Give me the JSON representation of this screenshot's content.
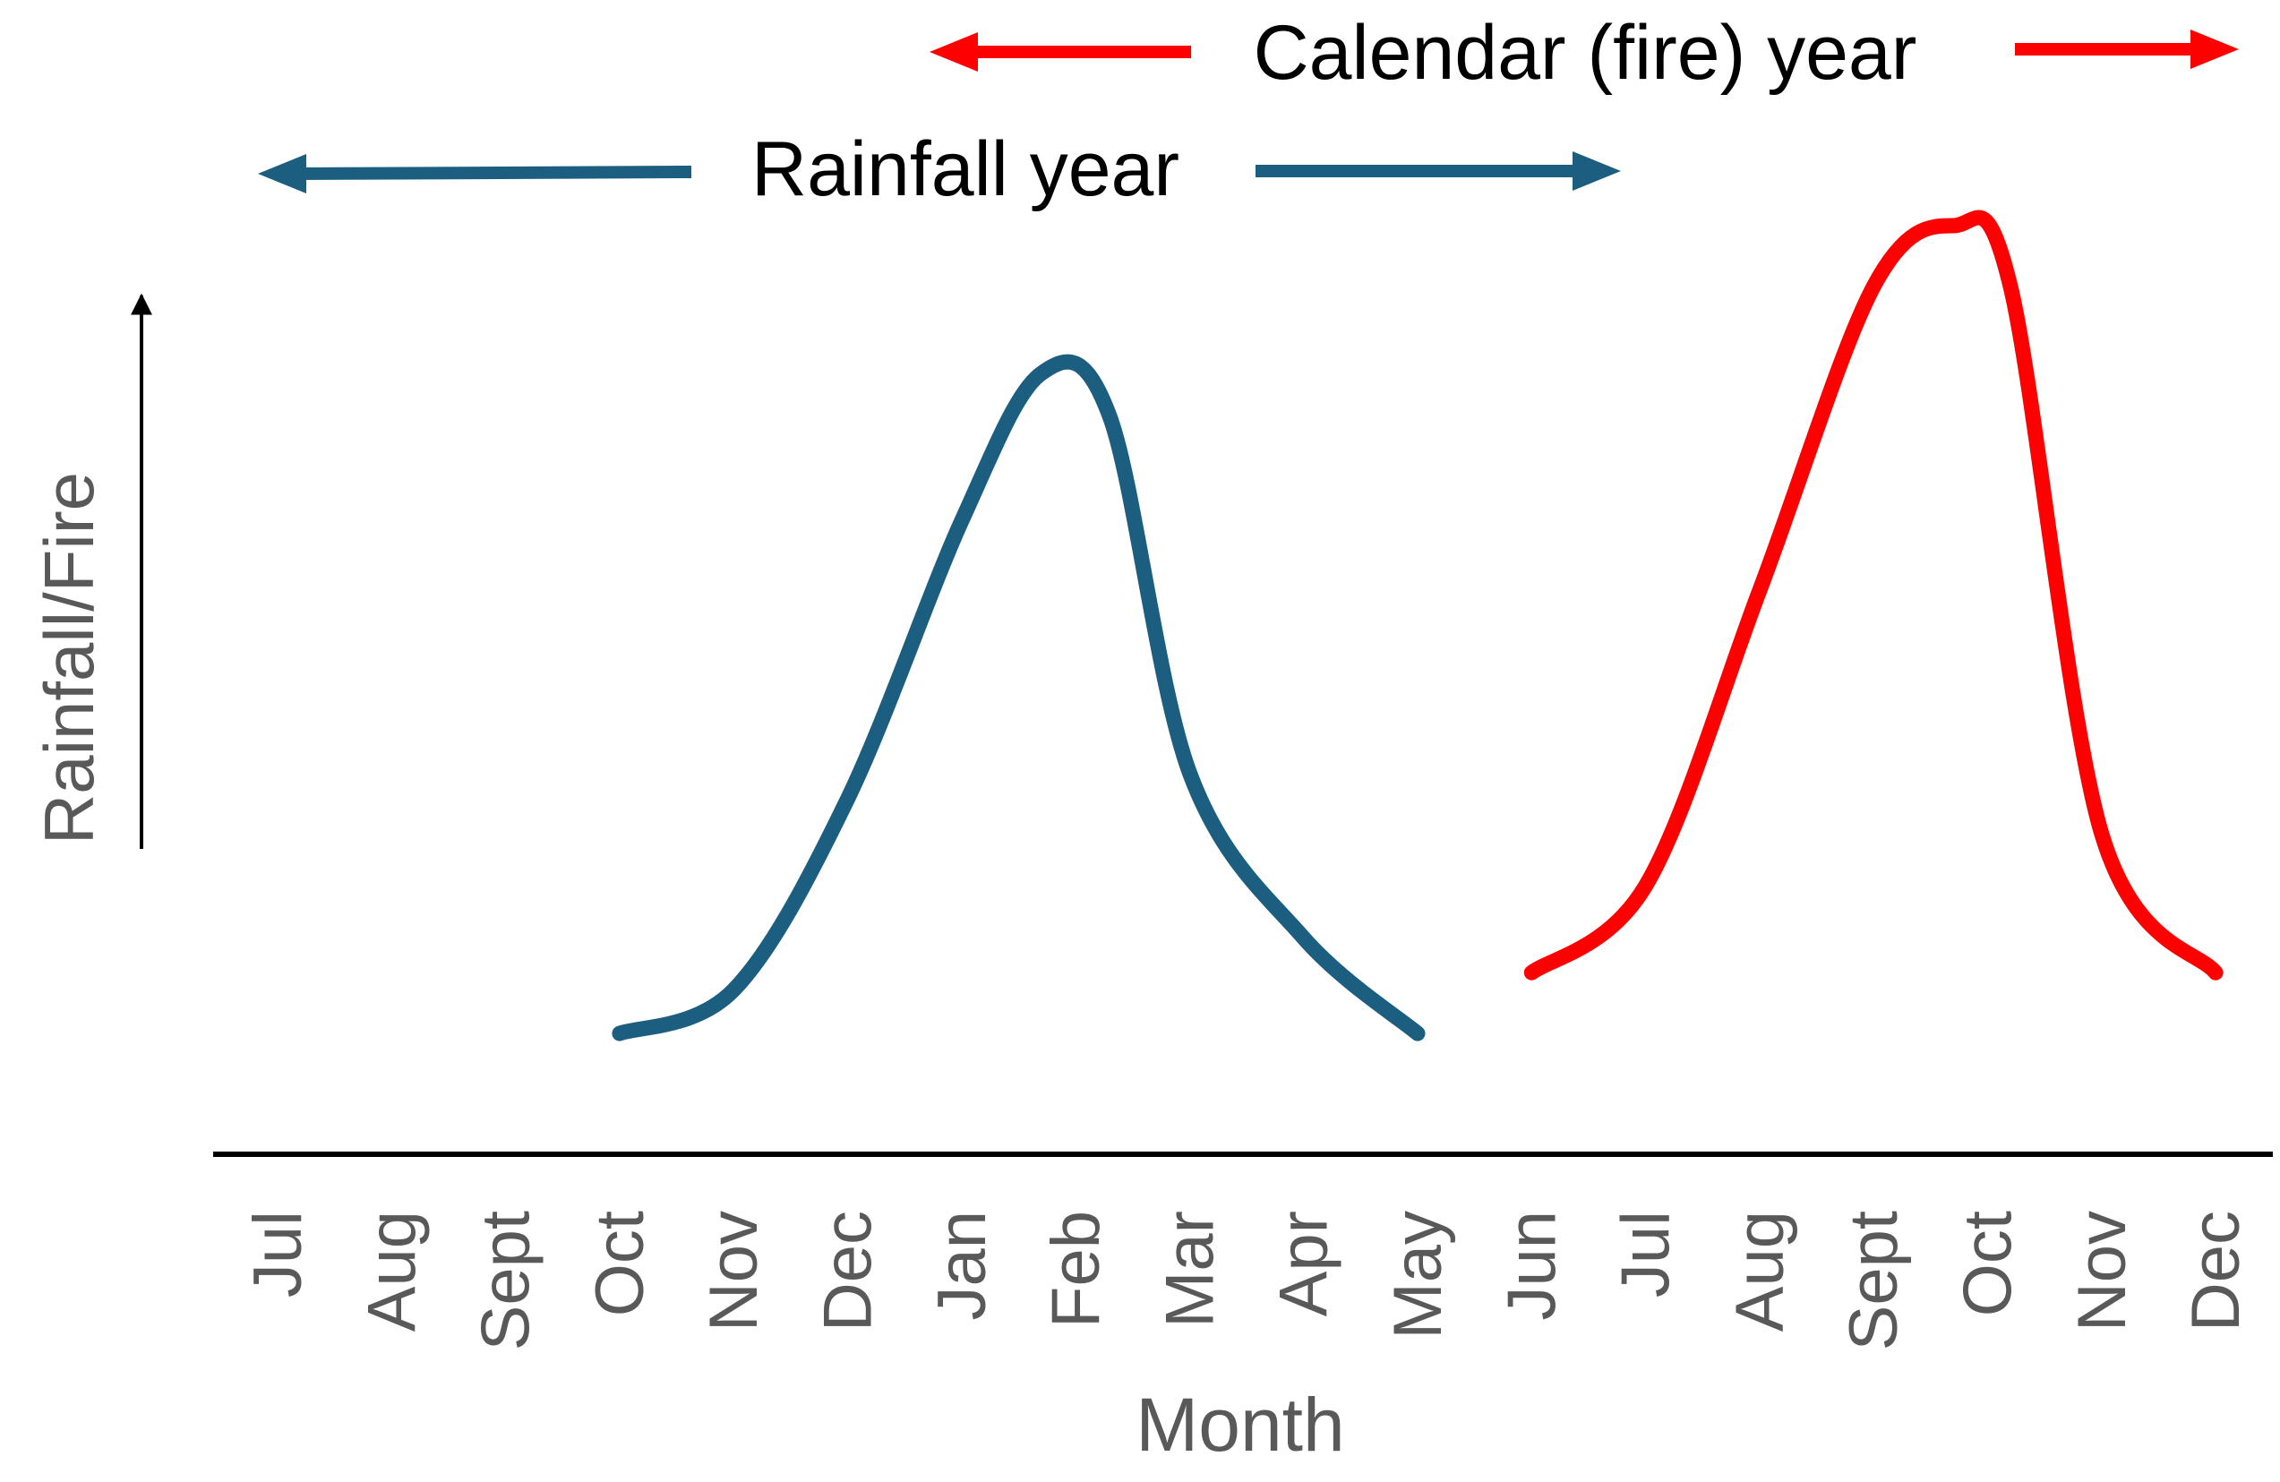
{
  "chart_data": {
    "type": "line",
    "title": "",
    "xlabel": "Month",
    "ylabel": "Rainfall/Fire",
    "categories": [
      "Jul",
      "Aug",
      "Sept",
      "Oct",
      "Nov",
      "Dec",
      "Jan",
      "Feb",
      "Mar",
      "Apr",
      "May",
      "Jun",
      "Jul",
      "Aug",
      "Sept",
      "Oct",
      "Nov",
      "Dec"
    ],
    "ylim": [
      0,
      100
    ],
    "grid": false,
    "series": [
      {
        "name": "Rainfall year",
        "color": "#1b5e80",
        "points": [
          {
            "x": 3.0,
            "y": 7
          },
          {
            "x": 4.0,
            "y": 12
          },
          {
            "x": 5.0,
            "y": 34
          },
          {
            "x": 6.0,
            "y": 66
          },
          {
            "x": 6.7,
            "y": 83
          },
          {
            "x": 7.3,
            "y": 78
          },
          {
            "x": 8.0,
            "y": 37
          },
          {
            "x": 9.0,
            "y": 18
          },
          {
            "x": 10.0,
            "y": 7
          }
        ]
      },
      {
        "name": "Calendar (fire) year",
        "color": "#ff0000",
        "points": [
          {
            "x": 11.0,
            "y": 14
          },
          {
            "x": 12.0,
            "y": 24
          },
          {
            "x": 13.0,
            "y": 58
          },
          {
            "x": 14.0,
            "y": 93
          },
          {
            "x": 14.7,
            "y": 100
          },
          {
            "x": 15.2,
            "y": 93
          },
          {
            "x": 16.0,
            "y": 30
          },
          {
            "x": 17.0,
            "y": 14
          }
        ]
      }
    ],
    "annotations": [
      {
        "text": "Calendar (fire) year",
        "color": "#ff0000",
        "arrow": "double-headed"
      },
      {
        "text": "Rainfall year",
        "color": "#1b5e80",
        "arrow": "double-headed"
      }
    ]
  }
}
